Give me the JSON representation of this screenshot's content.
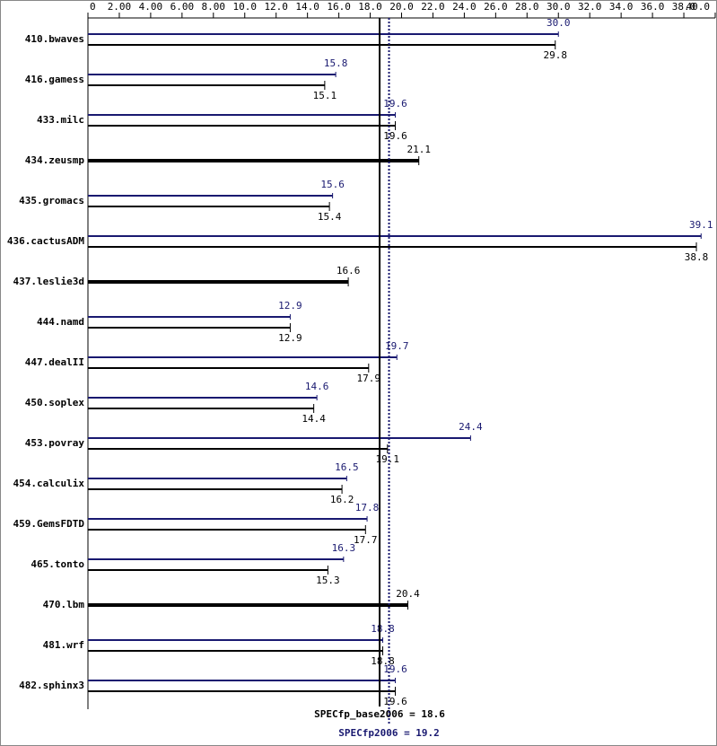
{
  "chart_data": {
    "type": "bar",
    "orientation": "horizontal",
    "categories": [
      "410.bwaves",
      "416.gamess",
      "433.milc",
      "434.zeusmp",
      "435.gromacs",
      "436.cactusADM",
      "437.leslie3d",
      "444.namd",
      "447.dealII",
      "450.soplex",
      "453.povray",
      "454.calculix",
      "459.GemsFDTD",
      "465.tonto",
      "470.lbm",
      "481.wrf",
      "482.sphinx3"
    ],
    "series": [
      {
        "color": "#191970",
        "values": [
          30.0,
          15.8,
          19.6,
          null,
          15.6,
          39.1,
          null,
          12.9,
          19.7,
          14.6,
          24.4,
          16.5,
          17.8,
          16.3,
          null,
          18.8,
          19.6
        ],
        "value_labels": [
          "30.0",
          "15.8",
          "19.6",
          null,
          "15.6",
          "39.1",
          null,
          "12.9",
          "19.7",
          "14.6",
          "24.4",
          "16.5",
          "17.8",
          "16.3",
          null,
          "18.8",
          "19.6"
        ]
      },
      {
        "color": "#000000",
        "values": [
          29.8,
          15.1,
          19.6,
          21.1,
          15.4,
          38.8,
          16.6,
          12.9,
          17.9,
          14.4,
          19.1,
          16.2,
          17.7,
          15.3,
          20.4,
          18.8,
          19.6
        ],
        "value_labels": [
          "29.8",
          "15.1",
          "19.6",
          "21.1",
          "15.4",
          "38.8",
          "16.6",
          "12.9",
          "17.9",
          "14.4",
          "19.1",
          "16.2",
          "17.7",
          "15.3",
          "20.4",
          "18.8",
          "19.6"
        ]
      }
    ],
    "xlim": [
      0,
      40
    ],
    "xticks": [
      0,
      {
        "value": 2,
        "label": "2.00"
      },
      {
        "value": 4,
        "label": "4.00"
      },
      {
        "value": 6,
        "label": "6.00"
      },
      {
        "value": 8,
        "label": "8.00"
      },
      {
        "value": 10,
        "label": "10.0"
      },
      {
        "value": 12,
        "label": "12.0"
      },
      {
        "value": 14,
        "label": "14.0"
      },
      {
        "value": 16,
        "label": "16.0"
      },
      {
        "value": 18,
        "label": "18.0"
      },
      {
        "value": 20,
        "label": "20.0"
      },
      {
        "value": 22,
        "label": "22.0"
      },
      {
        "value": 24,
        "label": "24.0"
      },
      {
        "value": 26,
        "label": "26.0"
      },
      {
        "value": 28,
        "label": "28.0"
      },
      {
        "value": 30,
        "label": "30.0"
      },
      {
        "value": 32,
        "label": "32.0"
      },
      {
        "value": 34,
        "label": "34.0"
      },
      {
        "value": 36,
        "label": "36.0"
      },
      {
        "value": 38,
        "label": "38.0"
      },
      {
        "value": 40,
        "label": "40.0"
      }
    ],
    "reference_lines": [
      {
        "value": 18.6,
        "label": "SPECfp_base2006 = 18.6",
        "color": "#000000",
        "style": "solid"
      },
      {
        "value": 19.2,
        "label": "SPECfp2006 = 19.2",
        "color": "#191970",
        "style": "dotted"
      }
    ]
  }
}
